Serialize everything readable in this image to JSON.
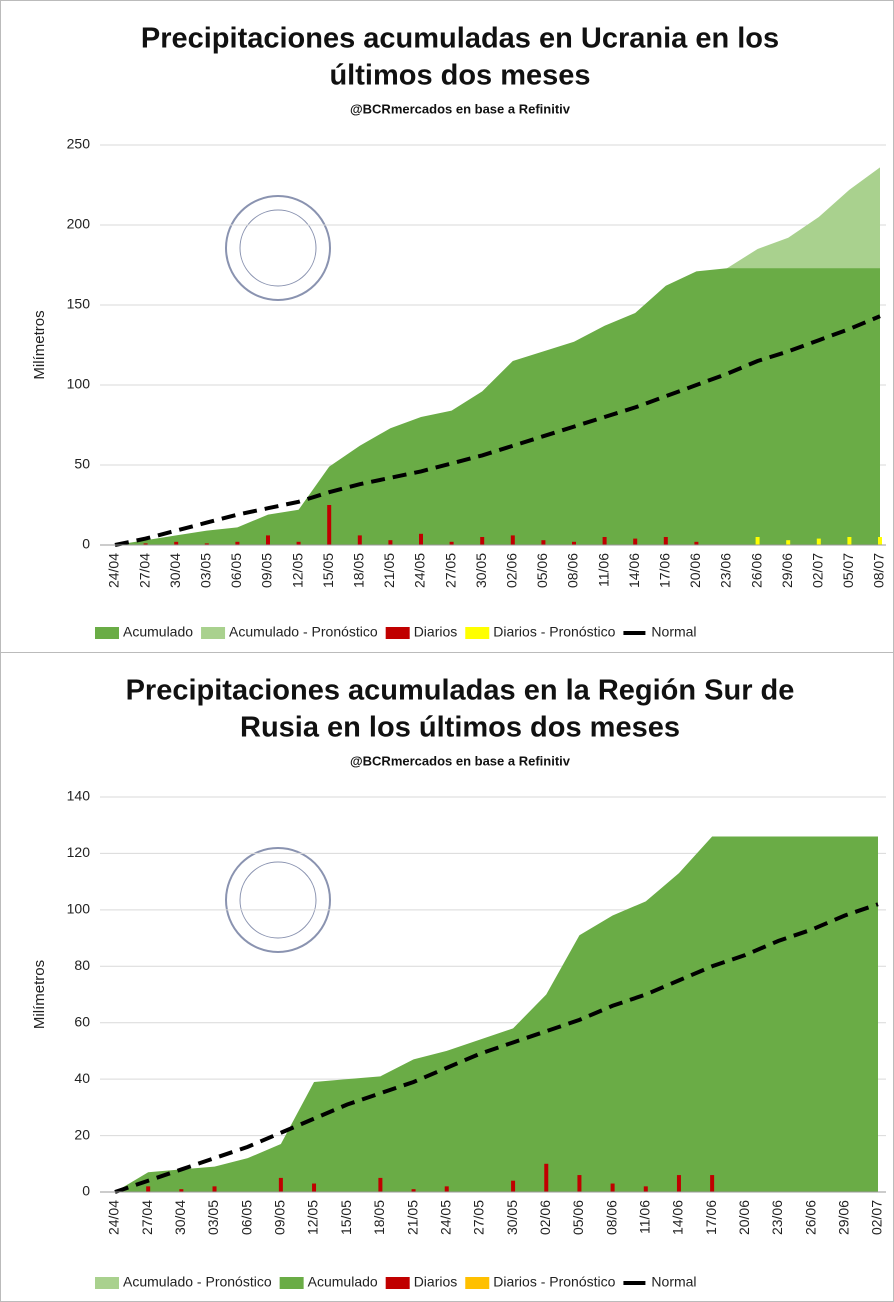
{
  "chart_data": [
    {
      "type": "area",
      "title_lines": [
        "Precipitaciones acumuladas en Ucrania en los",
        "últimos dos meses"
      ],
      "subtitle": "@BCRmercados en base a Refinitiv",
      "y_label": "Milímetros",
      "categories": [
        "24/04",
        "27/04",
        "30/04",
        "03/05",
        "06/05",
        "09/05",
        "12/05",
        "15/05",
        "18/05",
        "21/05",
        "24/05",
        "27/05",
        "30/05",
        "02/06",
        "05/06",
        "08/06",
        "11/06",
        "14/06",
        "17/06",
        "20/06",
        "23/06",
        "26/06",
        "29/06",
        "02/07",
        "05/07",
        "08/07"
      ],
      "ylim": [
        0,
        250
      ],
      "yticks": [
        0,
        50,
        100,
        150,
        200,
        250
      ],
      "grid": true,
      "series": [
        {
          "name": "Acumulado",
          "type": "area",
          "color": "#6aac46",
          "values": [
            0,
            3,
            6,
            9,
            11,
            19,
            22,
            49,
            62,
            73,
            80,
            84,
            96,
            115,
            121,
            127,
            137,
            145,
            162,
            171,
            173,
            173,
            173,
            173,
            173,
            173
          ]
        },
        {
          "name": "Acumulado - Pronóstico",
          "type": "area",
          "color": "#a9d18e",
          "values": [
            null,
            null,
            null,
            null,
            null,
            null,
            null,
            null,
            null,
            null,
            null,
            null,
            null,
            null,
            null,
            null,
            null,
            null,
            null,
            null,
            173,
            185,
            192,
            205,
            222,
            236
          ]
        },
        {
          "name": "Diarios",
          "type": "bar",
          "color": "#c00000",
          "values": [
            0,
            1,
            2,
            1,
            2,
            6,
            2,
            25,
            6,
            3,
            7,
            2,
            5,
            6,
            3,
            2,
            5,
            4,
            5,
            2,
            0,
            null,
            null,
            null,
            null,
            null
          ]
        },
        {
          "name": "Diarios - Pronóstico",
          "type": "bar",
          "color": "#ffff00",
          "values": [
            null,
            null,
            null,
            null,
            null,
            null,
            null,
            null,
            null,
            null,
            null,
            null,
            null,
            null,
            null,
            null,
            null,
            null,
            null,
            null,
            null,
            5,
            3,
            4,
            5,
            5
          ]
        },
        {
          "name": "Normal",
          "type": "line",
          "color": "#000000",
          "values": [
            0,
            4,
            9,
            14,
            19,
            23,
            27,
            33,
            38,
            42,
            46,
            51,
            56,
            62,
            68,
            74,
            80,
            86,
            93,
            100,
            107,
            115,
            121,
            128,
            135,
            143
          ]
        }
      ]
    },
    {
      "type": "area",
      "title_lines": [
        "Precipitaciones acumuladas en la Región Sur de",
        "Rusia en los últimos dos meses"
      ],
      "subtitle": "@BCRmercados en base a Refinitiv",
      "y_label": "Milímetros",
      "categories": [
        "24/04",
        "27/04",
        "30/04",
        "03/05",
        "06/05",
        "09/05",
        "12/05",
        "15/05",
        "18/05",
        "21/05",
        "24/05",
        "27/05",
        "30/05",
        "02/06",
        "05/06",
        "08/06",
        "11/06",
        "14/06",
        "17/06",
        "20/06",
        "23/06",
        "26/06",
        "29/06",
        "02/07"
      ],
      "ylim": [
        0,
        140
      ],
      "yticks": [
        0,
        20,
        40,
        60,
        80,
        100,
        120,
        140
      ],
      "grid": true,
      "series": [
        {
          "name": "Acumulado - Pronóstico",
          "type": "area",
          "color": "#a9d18e",
          "values": [
            null,
            null,
            null,
            null,
            null,
            null,
            null,
            null,
            null,
            null,
            null,
            null,
            null,
            null,
            null,
            null,
            null,
            null,
            null,
            null,
            null,
            null,
            null,
            null
          ]
        },
        {
          "name": "Acumulado",
          "type": "area",
          "color": "#6aac46",
          "values": [
            0,
            7,
            8,
            9,
            12,
            17,
            39,
            40,
            41,
            47,
            50,
            54,
            58,
            70,
            91,
            98,
            103,
            113,
            126,
            126,
            126,
            126,
            126,
            126
          ]
        },
        {
          "name": "Diarios",
          "type": "bar",
          "color": "#c00000",
          "values": [
            0,
            2,
            1,
            2,
            0,
            5,
            3,
            0,
            5,
            1,
            2,
            0,
            4,
            10,
            6,
            3,
            2,
            6,
            6,
            0,
            0,
            0,
            0,
            0
          ]
        },
        {
          "name": "Diarios - Pronóstico",
          "type": "bar",
          "color": "#ffc000",
          "values": [
            null,
            null,
            null,
            null,
            null,
            null,
            null,
            null,
            null,
            null,
            null,
            null,
            null,
            null,
            null,
            null,
            null,
            null,
            null,
            null,
            null,
            null,
            null,
            null
          ]
        },
        {
          "name": "Normal",
          "type": "line",
          "color": "#000000",
          "values": [
            0,
            4,
            8,
            12,
            16,
            21,
            26,
            31,
            35,
            39,
            44,
            49,
            53,
            57,
            61,
            66,
            70,
            75,
            80,
            84,
            89,
            93,
            98,
            102
          ]
        }
      ]
    }
  ]
}
